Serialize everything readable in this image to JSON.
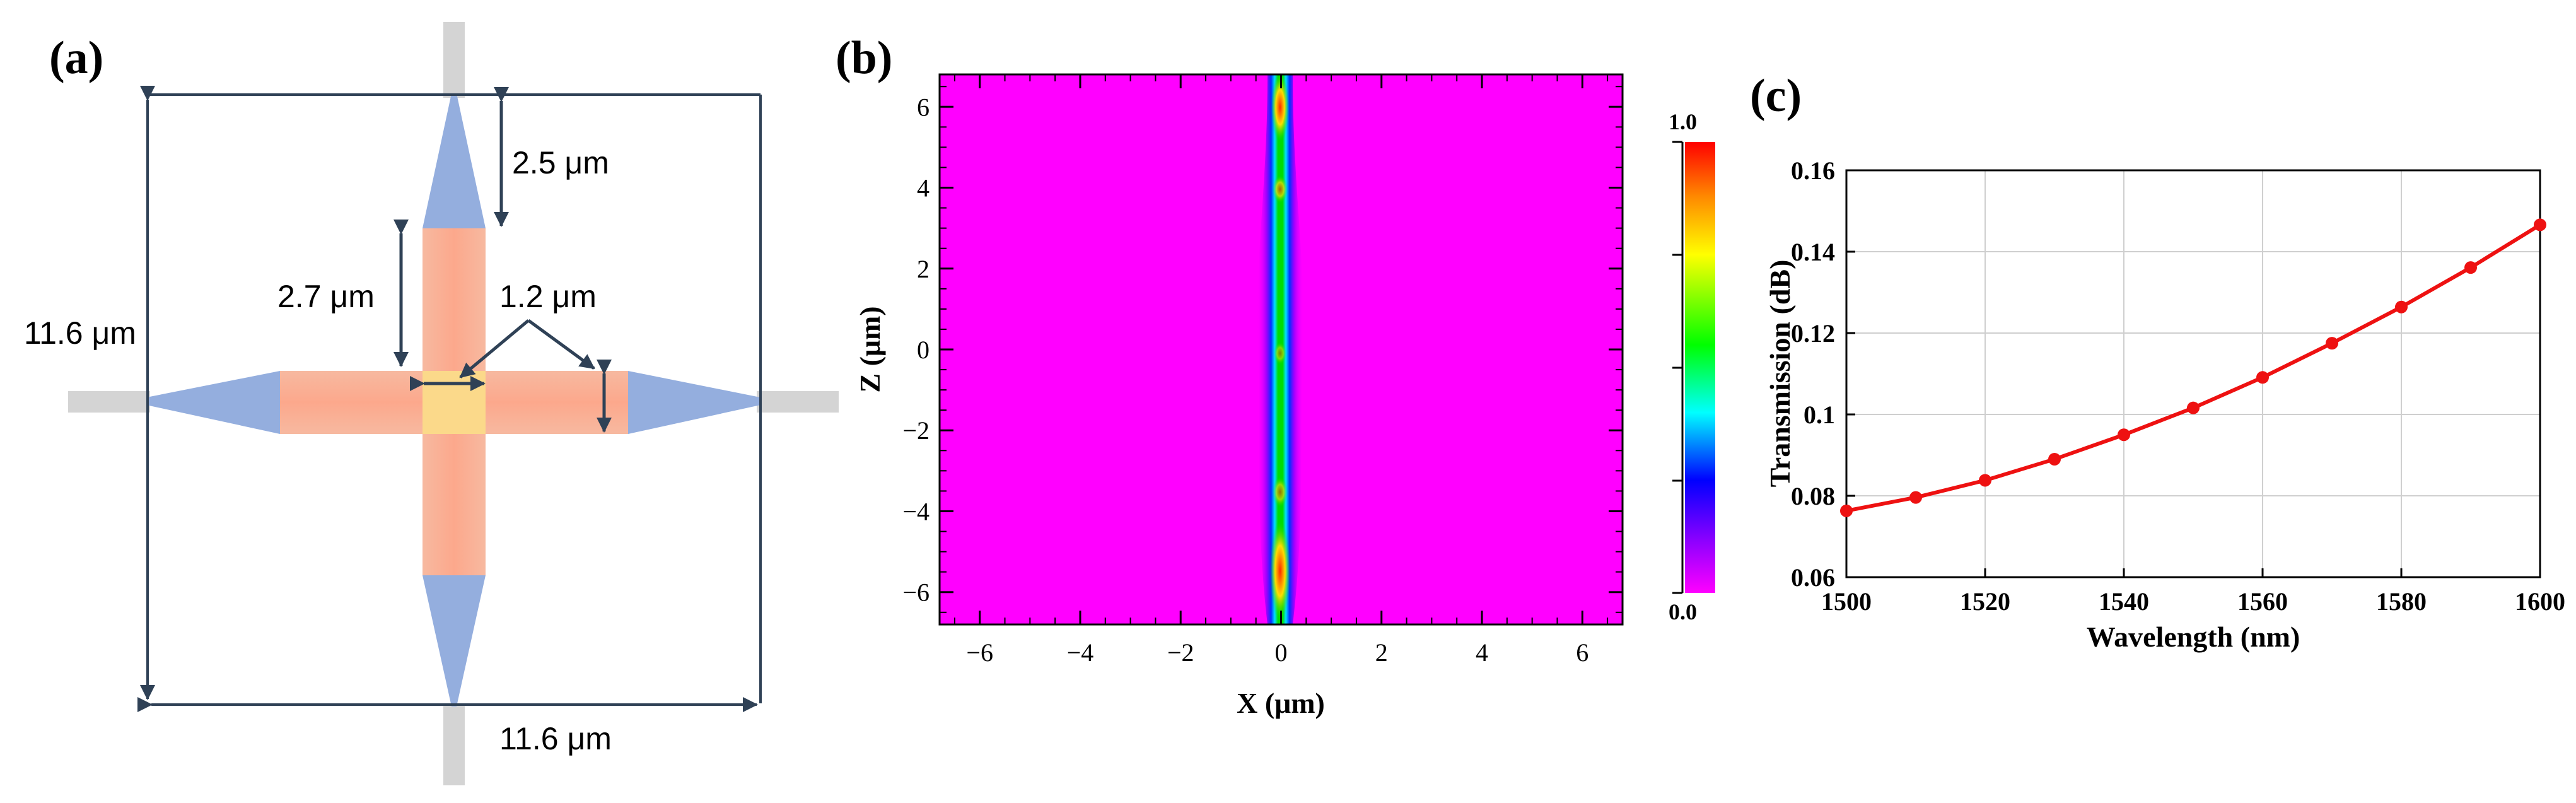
{
  "panels": {
    "a": {
      "label": "(a)",
      "annotations": {
        "outer_height": "11.6 μm",
        "outer_width": "11.6 μm",
        "taper_length": "2.5 μm",
        "arm_length": "2.7 μm",
        "waveguide_width": "1.2 μm"
      }
    },
    "b": {
      "label": "(b)",
      "xlabel": "X (μm)",
      "ylabel": "Z (μm)",
      "xticks": [
        "−6",
        "−4",
        "−2",
        "0",
        "2",
        "4",
        "6"
      ],
      "yticks": [
        "6",
        "4",
        "2",
        "0",
        "−2",
        "−4",
        "−6"
      ],
      "colorbar": {
        "max_label": "1.0",
        "min_label": "0.0"
      },
      "colors": {
        "background": "#ff00ff",
        "beam_core": "#00dd00",
        "hot": "#ff2a00"
      }
    },
    "c": {
      "label": "(c)"
    }
  },
  "chart_data": [
    {
      "type": "heatmap",
      "panel": "b",
      "title": "",
      "xlabel": "X (μm)",
      "ylabel": "Z (μm)",
      "xlim": [
        -6.8,
        6.8
      ],
      "ylim": [
        -6.8,
        6.8
      ],
      "colorbar_range": [
        0.0,
        1.0
      ],
      "colormap": "rainbow (magenta → blue → cyan → green → yellow → red)",
      "description_values": {
        "beam_center_x": 0,
        "beam_halfwidth_x": 0.35
      }
    },
    {
      "type": "line",
      "panel": "c",
      "title": "",
      "xlabel": "Wavelength (nm)",
      "ylabel": "Transmission (dB)",
      "xlim": [
        1500,
        1600
      ],
      "ylim": [
        0.06,
        0.16
      ],
      "xticks": [
        1500,
        1520,
        1540,
        1560,
        1580,
        1600
      ],
      "yticks": [
        "0.06",
        "0.08",
        "0.1",
        "0.12",
        "0.14",
        "0.16"
      ],
      "grid": true,
      "series": [
        {
          "color": "#ee1111",
          "x": [
            1500,
            1510,
            1520,
            1530,
            1540,
            1550,
            1560,
            1570,
            1580,
            1590,
            1600
          ],
          "values": [
            0.0763,
            0.0796,
            0.0838,
            0.089,
            0.095,
            0.1016,
            0.1091,
            0.1175,
            0.1264,
            0.1361,
            0.1466
          ]
        }
      ]
    }
  ]
}
